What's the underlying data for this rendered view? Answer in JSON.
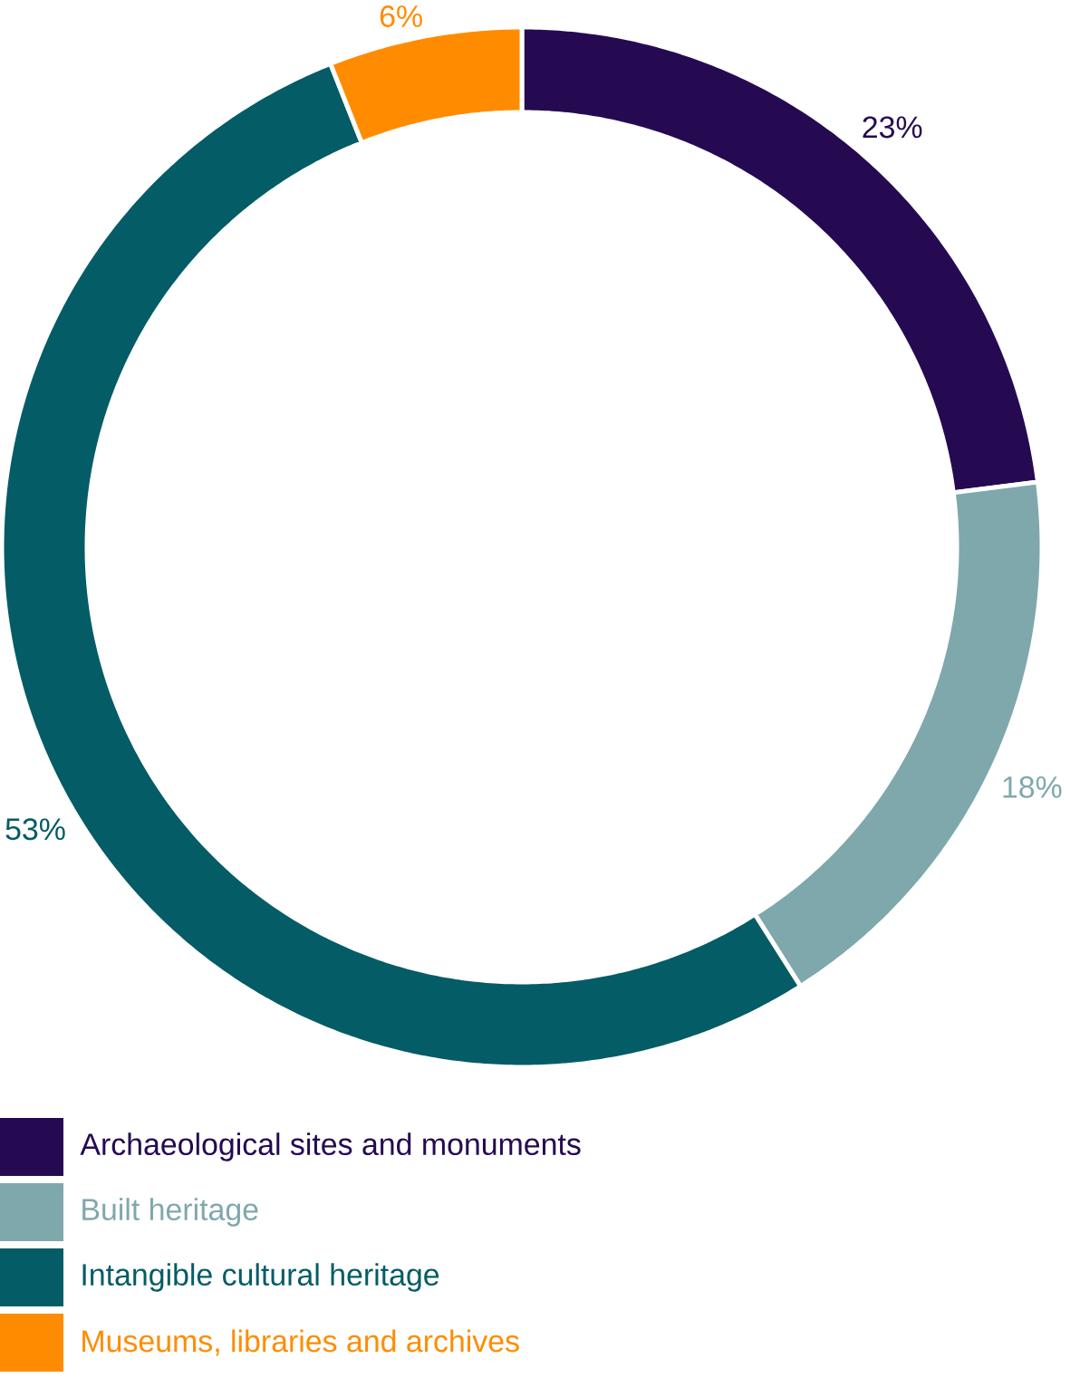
{
  "chart_data": {
    "type": "donut",
    "categories": [
      "Archaeological sites and monuments",
      "Built heritage",
      "Intangible cultural heritage",
      "Museums, libraries and archives"
    ],
    "values": [
      23,
      18,
      53,
      6
    ],
    "colors": [
      "#250a52",
      "#7fa8ad",
      "#045c66",
      "#ff8c00"
    ],
    "value_labels": [
      "23%",
      "18%",
      "53%",
      "6%"
    ],
    "legend": "bottom left"
  }
}
